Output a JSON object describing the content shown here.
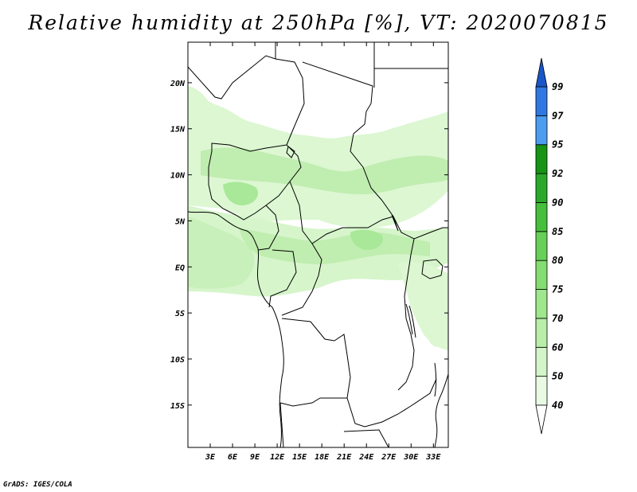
{
  "title": "Relative humidity at 250hPa [%], VT: 2020070815",
  "credit": "GrADS: IGES/COLA",
  "map": {
    "lat_labels": [
      "20N",
      "15N",
      "10N",
      "5N",
      "EQ",
      "5S",
      "10S",
      "15S"
    ],
    "lat_values": [
      20,
      15,
      10,
      5,
      0,
      -5,
      -10,
      -15
    ],
    "lon_labels": [
      "3E",
      "6E",
      "9E",
      "12E",
      "15E",
      "18E",
      "21E",
      "24E",
      "27E",
      "30E",
      "33E"
    ],
    "lon_values": [
      3,
      6,
      9,
      12,
      15,
      18,
      21,
      24,
      27,
      30,
      33
    ],
    "lon_range": [
      0,
      35
    ],
    "lat_range": [
      -19.6,
      24.4
    ]
  },
  "colorbar": {
    "levels": [
      "40",
      "50",
      "60",
      "70",
      "75",
      "80",
      "85",
      "90",
      "92",
      "95",
      "97",
      "99"
    ],
    "colors": [
      "#ffffff",
      "#e8fae4",
      "#d3f5c9",
      "#b8eeaa",
      "#9fe68c",
      "#84dd71",
      "#66d156",
      "#46bf3c",
      "#2aa82a",
      "#169414",
      "#4c9cf0",
      "#2f78e2",
      "#1a56c8"
    ]
  }
}
